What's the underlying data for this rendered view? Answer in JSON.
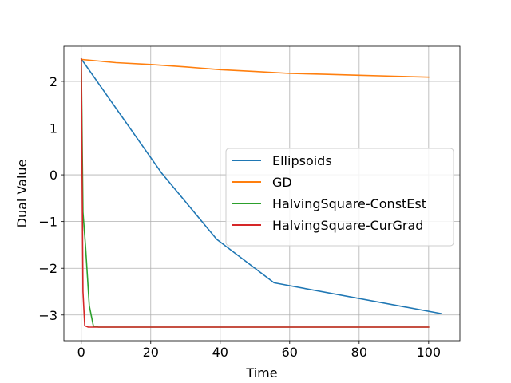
{
  "chart_data": {
    "type": "line",
    "title": "",
    "xlabel": "Time",
    "ylabel": "Dual Value",
    "xlim": [
      -5,
      109
    ],
    "ylim": [
      -3.55,
      2.75
    ],
    "xticks": [
      0,
      20,
      40,
      60,
      80,
      100
    ],
    "yticks": [
      -3,
      -2,
      -1,
      0,
      1,
      2
    ],
    "xtick_labels": [
      "0",
      "20",
      "40",
      "60",
      "80",
      "100"
    ],
    "ytick_labels": [
      "−3",
      "−2",
      "−1",
      "0",
      "1",
      "2"
    ],
    "grid": true,
    "legend_position": "center-right",
    "series": [
      {
        "name": "Ellipsoids",
        "color": "#1f77b4",
        "x": [
          0,
          23,
          39,
          55.5,
          103.5
        ],
        "y": [
          2.48,
          0.05,
          -1.38,
          -2.31,
          -2.97
        ]
      },
      {
        "name": "GD",
        "color": "#ff7f0e",
        "x": [
          0,
          10,
          20,
          30,
          40,
          50,
          60,
          70,
          80,
          90,
          100
        ],
        "y": [
          2.47,
          2.4,
          2.36,
          2.31,
          2.25,
          2.21,
          2.17,
          2.15,
          2.13,
          2.11,
          2.09
        ]
      },
      {
        "name": "HalvingSquare-ConstEst",
        "color": "#2ca02c",
        "x": [
          0,
          0.5,
          1.2,
          2.3,
          3.5,
          5,
          100
        ],
        "y": [
          2.48,
          -0.8,
          -1.5,
          -2.8,
          -3.24,
          -3.26,
          -3.26
        ]
      },
      {
        "name": "HalvingSquare-CurGrad",
        "color": "#d62728",
        "x": [
          0,
          0.2,
          0.5,
          1,
          2,
          100
        ],
        "y": [
          2.48,
          0.5,
          -2.5,
          -3.23,
          -3.26,
          -3.26
        ]
      }
    ]
  }
}
